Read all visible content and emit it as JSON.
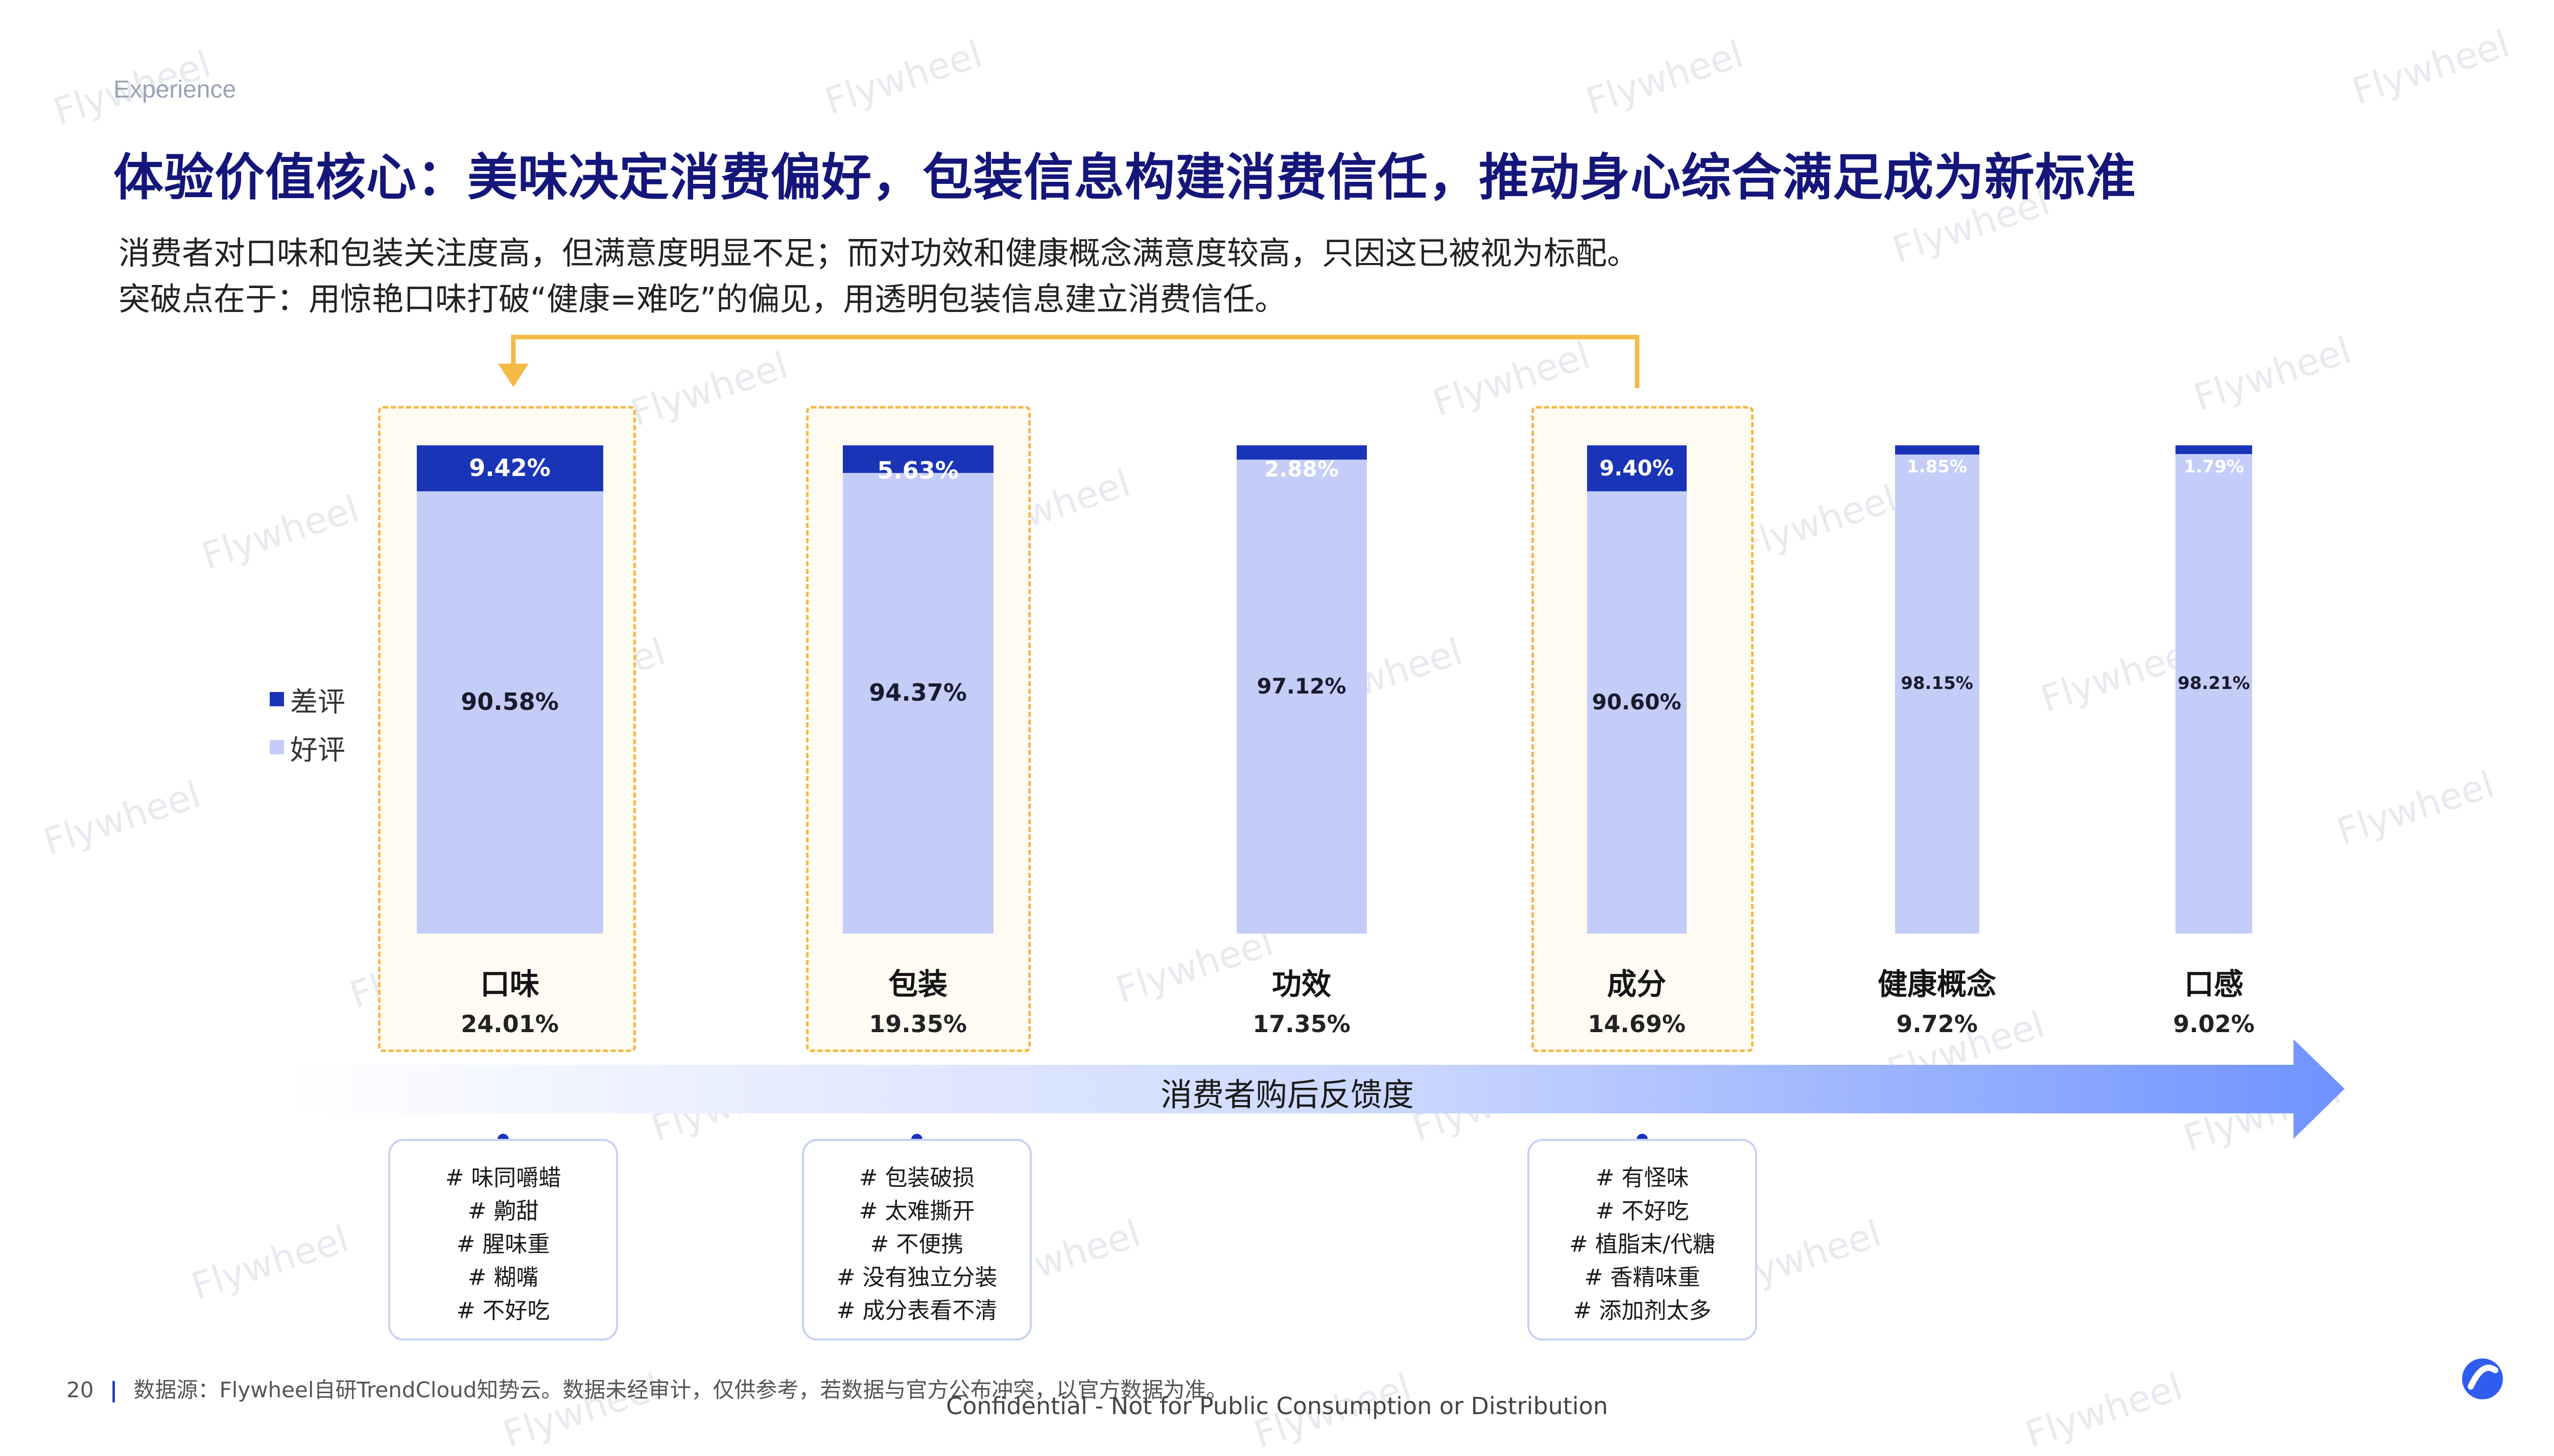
{
  "header": {
    "section_tag": "Experience",
    "title": "体验价值核心：美味决定消费偏好，包装信息构建消费信任，推动身心综合满足成为新标准",
    "subtitle_line1": "消费者对口味和包装关注度高，但满意度明显不足；而对功效和健康概念满意度较高，只因这已被视为标配。",
    "subtitle_line2": "突破点在于：用惊艳口味打破“健康=难吃”的偏见，用透明包装信息建立消费信任。"
  },
  "legend": {
    "negative": "差评",
    "positive": "好评"
  },
  "colors": {
    "negative": "#1a34b8",
    "positive": "#c3cdf7",
    "highlight_border": "#f5b946",
    "arrow_start": "#ffffff",
    "arrow_end": "#6f92ff",
    "title": "#14167a"
  },
  "chart_data": {
    "type": "bar",
    "stacked": true,
    "normalized": true,
    "categories": [
      "口味",
      "包装",
      "功效",
      "成分",
      "健康概念",
      "口感"
    ],
    "category_share": [
      "24.01%",
      "19.35%",
      "17.35%",
      "14.69%",
      "9.72%",
      "9.02%"
    ],
    "series": [
      {
        "name": "差评",
        "values": [
          9.42,
          5.63,
          2.88,
          9.4,
          1.85,
          1.79
        ],
        "labels": [
          "9.42%",
          "5.63%",
          "2.88%",
          "9.40%",
          "1.85%",
          "1.79%"
        ]
      },
      {
        "name": "好评",
        "values": [
          90.58,
          94.37,
          97.12,
          90.6,
          98.15,
          98.21
        ],
        "labels": [
          "90.58%",
          "94.37%",
          "97.12%",
          "90.60%",
          "98.15%",
          "98.21%"
        ]
      }
    ],
    "ylim": [
      0,
      100
    ],
    "highlighted_categories": [
      "口味",
      "包装",
      "成分"
    ],
    "legend_position": "left"
  },
  "arrow": {
    "label": "消费者购后反馈度"
  },
  "tag_boxes": [
    {
      "category": "口味",
      "tags": [
        "# 味同嚼蜡",
        "# 齁甜",
        "# 腥味重",
        "# 糊嘴",
        "# 不好吃"
      ]
    },
    {
      "category": "包装",
      "tags": [
        "# 包装破损",
        "# 太难撕开",
        "# 不便携",
        "# 没有独立分装",
        "# 成分表看不清"
      ]
    },
    {
      "category": "成分",
      "tags": [
        "# 有怪味",
        "# 不好吃",
        "# 植脂末/代糖",
        "# 香精味重",
        "# 添加剂太多"
      ]
    }
  ],
  "footer": {
    "page_number": "20",
    "source": "数据源：Flywheel自研TrendCloud知势云。数据未经审计，仅供参考，若数据与官方公布冲突，以官方数据为准。",
    "confidential": "Confidential - Not for Public Consumption or Distribution"
  },
  "watermark_text": "Flywheel",
  "icons": {
    "brand": "flywheel-logo-icon"
  }
}
